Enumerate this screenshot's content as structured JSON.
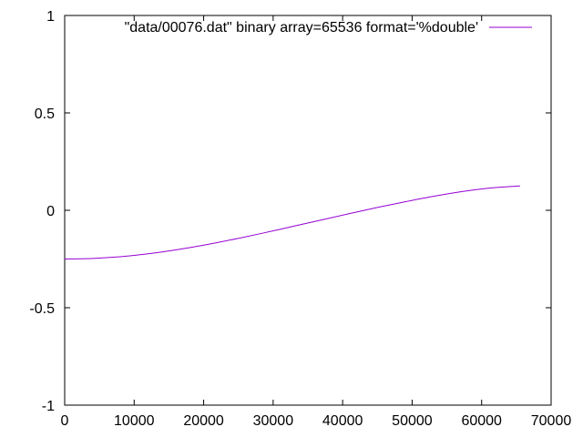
{
  "chart_data": {
    "type": "line",
    "title": "",
    "xlabel": "",
    "ylabel": "",
    "xlim": [
      0,
      70000
    ],
    "ylim": [
      -1,
      1
    ],
    "x_ticks": [
      0,
      10000,
      20000,
      30000,
      40000,
      50000,
      60000,
      70000
    ],
    "y_ticks": [
      -1,
      -0.5,
      0,
      0.5,
      1
    ],
    "x_tick_labels": [
      "0",
      "10000",
      "20000",
      "30000",
      "40000",
      "50000",
      "60000",
      "70000"
    ],
    "y_tick_labels": [
      "-1",
      "-0.5",
      "0",
      "0.5",
      "1"
    ],
    "grid": false,
    "legend_position": "top-right",
    "series": [
      {
        "name": "\"data/00076.dat\" binary array=65536 format='%double'",
        "color": "#9400d3",
        "x": [
          0,
          4096,
          8192,
          12288,
          16384,
          20480,
          24576,
          28672,
          32768,
          36864,
          40960,
          45056,
          49152,
          53248,
          57344,
          61440,
          65535
        ],
        "y": [
          -0.25,
          -0.247,
          -0.2375,
          -0.222,
          -0.201,
          -0.176,
          -0.147,
          -0.116,
          -0.083,
          -0.05,
          -0.017,
          0.015,
          0.045,
          0.073,
          0.097,
          0.115,
          0.125
        ]
      }
    ]
  }
}
